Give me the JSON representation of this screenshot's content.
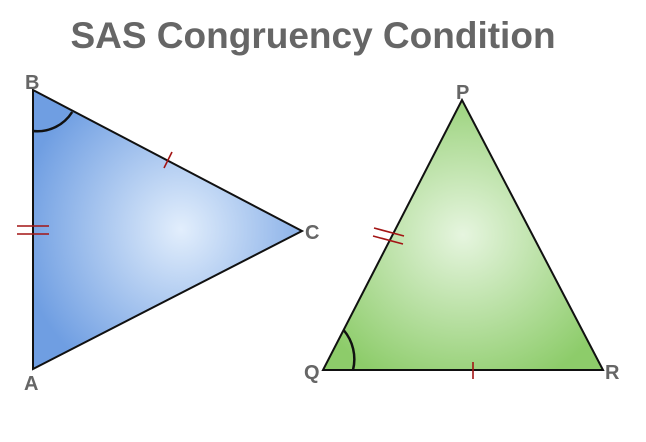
{
  "title": "SAS Congruency Condition",
  "triangles": [
    {
      "name": "ABC",
      "fill_center": "#e2eefc",
      "fill_edge": "#6f9ee2",
      "vertices": {
        "A": "A",
        "B": "B",
        "C": "C"
      }
    },
    {
      "name": "PQR",
      "fill_center": "#e6f5df",
      "fill_edge": "#8dcc6a",
      "vertices": {
        "P": "P",
        "Q": "Q",
        "R": "R"
      }
    }
  ],
  "colors": {
    "title": "#666666",
    "label": "#666666",
    "stroke": "#111111",
    "tick": "#a31515"
  },
  "marks": {
    "single_tick_sides": [
      "BC",
      "QR"
    ],
    "double_tick_sides": [
      "AB",
      "PQ"
    ],
    "angle_arcs": [
      "B",
      "Q"
    ]
  }
}
